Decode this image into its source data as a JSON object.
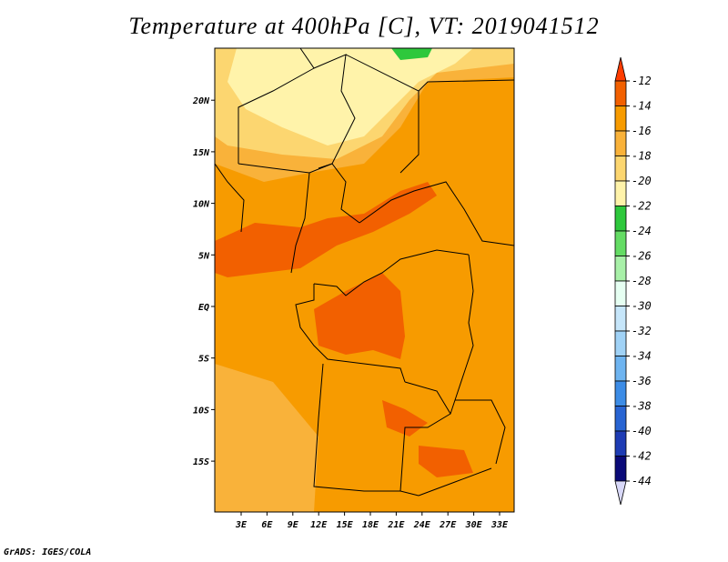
{
  "title": "Temperature at 400hPa [C], VT: 2019041512",
  "credit": "GrADS: IGES/COLA",
  "map": {
    "lon_ticks": [
      "3E",
      "6E",
      "9E",
      "12E",
      "15E",
      "18E",
      "21E",
      "24E",
      "27E",
      "30E",
      "33E"
    ],
    "lat_ticks": [
      "20N",
      "15N",
      "10N",
      "5N",
      "EQ",
      "5S",
      "10S",
      "15S"
    ],
    "lon_range": [
      0,
      35
    ],
    "lat_range": [
      -20,
      25
    ]
  },
  "legend": {
    "labels": [
      "-12",
      "-14",
      "-16",
      "-18",
      "-20",
      "-22",
      "-24",
      "-26",
      "-28",
      "-30",
      "-32",
      "-34",
      "-36",
      "-38",
      "-40",
      "-42",
      "-44"
    ],
    "colors": [
      "#ff3c00",
      "#f26000",
      "#f79b00",
      "#f9b23a",
      "#fcd670",
      "#fff3aa",
      "#2ec83c",
      "#64dc64",
      "#a8f0a8",
      "#e6fff2",
      "#c6e6fa",
      "#a0d2f6",
      "#6eb4f0",
      "#3c8ce6",
      "#2864d2",
      "#1e3cb4",
      "#0a0a78",
      "#d8d8f8"
    ]
  },
  "colors": {
    "dominant": "#f79b00",
    "warm_band": "#f26000",
    "north_pale": "#fff3aa",
    "north_light": "#fcd670"
  }
}
